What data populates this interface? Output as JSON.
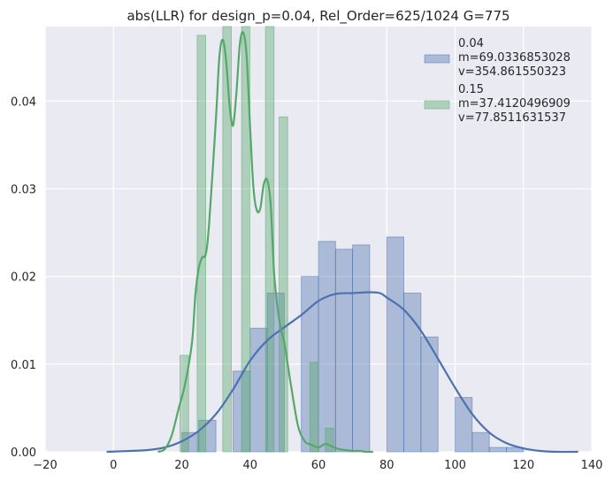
{
  "chart_data": {
    "type": "bar",
    "title": "abs(LLR) for design_p=0.04, Rel_Order=625/1024 G=775",
    "xlabel": "",
    "ylabel": "",
    "xlim": [
      -20,
      140
    ],
    "ylim": [
      0,
      0.0485
    ],
    "xticks": [
      "−20",
      "0",
      "20",
      "40",
      "60",
      "80",
      "100",
      "120",
      "140"
    ],
    "yticks": [
      "0.00",
      "0.01",
      "0.02",
      "0.03",
      "0.04"
    ],
    "grid": true,
    "legend_position": "top-right",
    "colors": {
      "series_0": "#4c72b0",
      "series_1": "#55a868",
      "background": "#eaeaf2",
      "grid": "#ffffff"
    },
    "series": [
      {
        "name": "0.04",
        "legend_lines": [
          "0.04",
          " m=69.0336853028",
          " v=354.861550323"
        ],
        "histogram": {
          "bins": [
            [
              20,
              25,
              0.0022
            ],
            [
              25,
              30,
              0.0036
            ],
            [
              30,
              35,
              0.0
            ],
            [
              35,
              40,
              0.0092
            ],
            [
              40,
              45,
              0.0141
            ],
            [
              45,
              50,
              0.0181
            ],
            [
              50,
              55,
              0.0
            ],
            [
              55,
              60,
              0.02
            ],
            [
              60,
              65,
              0.024
            ],
            [
              65,
              70,
              0.0231
            ],
            [
              70,
              75,
              0.0236
            ],
            [
              75,
              80,
              0.0
            ],
            [
              80,
              85,
              0.0245
            ],
            [
              85,
              90,
              0.0181
            ],
            [
              90,
              95,
              0.0131
            ],
            [
              95,
              100,
              0.0
            ],
            [
              100,
              105,
              0.0062
            ],
            [
              105,
              110,
              0.0022
            ],
            [
              110,
              115,
              0.0005
            ],
            [
              115,
              120,
              0.0005
            ]
          ]
        },
        "kde": {
          "x": [
            -2,
            5,
            10,
            15,
            20,
            25,
            30,
            35,
            40,
            45,
            50,
            55,
            60,
            65,
            70,
            75,
            78,
            80,
            85,
            90,
            95,
            100,
            105,
            110,
            115,
            120,
            125,
            130,
            136
          ],
          "y": [
            0.0,
            0.0001,
            0.0002,
            0.0005,
            0.0012,
            0.0024,
            0.0043,
            0.0071,
            0.0104,
            0.0127,
            0.0142,
            0.0156,
            0.0172,
            0.018,
            0.0181,
            0.0182,
            0.0181,
            0.0176,
            0.0162,
            0.0138,
            0.0106,
            0.0073,
            0.0043,
            0.0022,
            0.001,
            0.0004,
            0.0001,
            0.0,
            0.0
          ]
        }
      },
      {
        "name": "0.15",
        "legend_lines": [
          "0.15",
          " m=37.4120496909",
          " v=77.8511631537"
        ],
        "histogram": {
          "bins": [
            [
              19.5,
              22.0,
              0.011
            ],
            [
              24.5,
              27.0,
              0.0475
            ],
            [
              32.0,
              34.5,
              0.049
            ],
            [
              37.5,
              40.0,
              0.049
            ],
            [
              44.5,
              47.0,
              0.049
            ],
            [
              48.5,
              51.0,
              0.0382
            ],
            [
              57.5,
              60.0,
              0.0102
            ],
            [
              62.0,
              64.5,
              0.0027
            ]
          ]
        },
        "kde": {
          "x": [
            13,
            15,
            17,
            19,
            21,
            23,
            24,
            25,
            26,
            27,
            28,
            30,
            31,
            32,
            33,
            34,
            35,
            36,
            37,
            38,
            39,
            40,
            41,
            42,
            43,
            44,
            45,
            46,
            47,
            48,
            49,
            50,
            51,
            52,
            54,
            56,
            58,
            60,
            62,
            64,
            66,
            68,
            70,
            72,
            74,
            76
          ],
          "y": [
            0.0,
            0.0003,
            0.0018,
            0.0048,
            0.0078,
            0.0125,
            0.018,
            0.021,
            0.0222,
            0.0225,
            0.026,
            0.038,
            0.045,
            0.047,
            0.0445,
            0.0395,
            0.0372,
            0.041,
            0.0465,
            0.0478,
            0.045,
            0.037,
            0.03,
            0.0275,
            0.0278,
            0.0305,
            0.031,
            0.0283,
            0.0205,
            0.0165,
            0.014,
            0.0125,
            0.01,
            0.0075,
            0.003,
            0.0012,
            0.0008,
            0.0005,
            0.0009,
            0.0006,
            0.0003,
            0.0002,
            0.0001,
            0.0001,
            0.0,
            0.0
          ]
        }
      }
    ]
  }
}
